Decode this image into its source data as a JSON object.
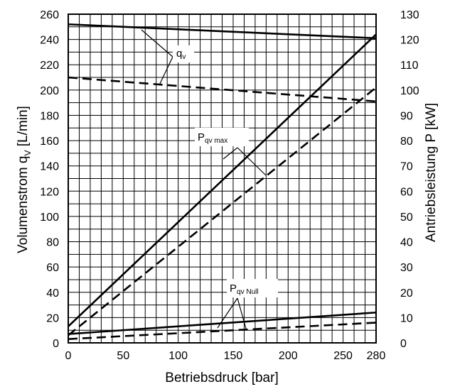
{
  "chart_data": {
    "type": "line",
    "xlabel": "Betriebsdruck [bar]",
    "ylabel_left": {
      "main": "Volumenstrom q",
      "sub": "V",
      "unit": " [L/min]"
    },
    "ylabel_right": "Antriebsleistung P [kW]",
    "xlim": [
      0,
      280
    ],
    "ylim_left": [
      0,
      260
    ],
    "ylim_right": [
      0,
      130
    ],
    "x_ticks": [
      0,
      50,
      100,
      150,
      200,
      250,
      280
    ],
    "y_left_ticks": [
      0,
      20,
      40,
      60,
      80,
      100,
      120,
      140,
      160,
      180,
      200,
      220,
      240,
      260
    ],
    "y_right_ticks": [
      0,
      10,
      20,
      30,
      40,
      50,
      60,
      70,
      80,
      90,
      100,
      110,
      120,
      130
    ],
    "grid": true,
    "series": [
      {
        "axis": "left",
        "style": "solid",
        "x": [
          0,
          280
        ],
        "y": [
          252,
          241
        ]
      },
      {
        "axis": "left",
        "style": "dashed",
        "x": [
          0,
          280
        ],
        "y": [
          210,
          191
        ]
      },
      {
        "axis": "right",
        "style": "solid",
        "x": [
          0,
          280
        ],
        "y": [
          6.5,
          122
        ]
      },
      {
        "axis": "right",
        "style": "dashed",
        "x": [
          0,
          280
        ],
        "y": [
          3,
          101
        ]
      },
      {
        "axis": "right",
        "style": "solid",
        "x": [
          0,
          280
        ],
        "y": [
          3.5,
          12
        ]
      },
      {
        "axis": "right",
        "style": "dashed",
        "x": [
          0,
          280
        ],
        "y": [
          1.5,
          8
        ]
      }
    ],
    "annotations": [
      {
        "main": "q",
        "sub": "v"
      },
      {
        "main": "P",
        "sub": "qv max"
      },
      {
        "main": "P",
        "sub": "qv Null"
      }
    ]
  }
}
